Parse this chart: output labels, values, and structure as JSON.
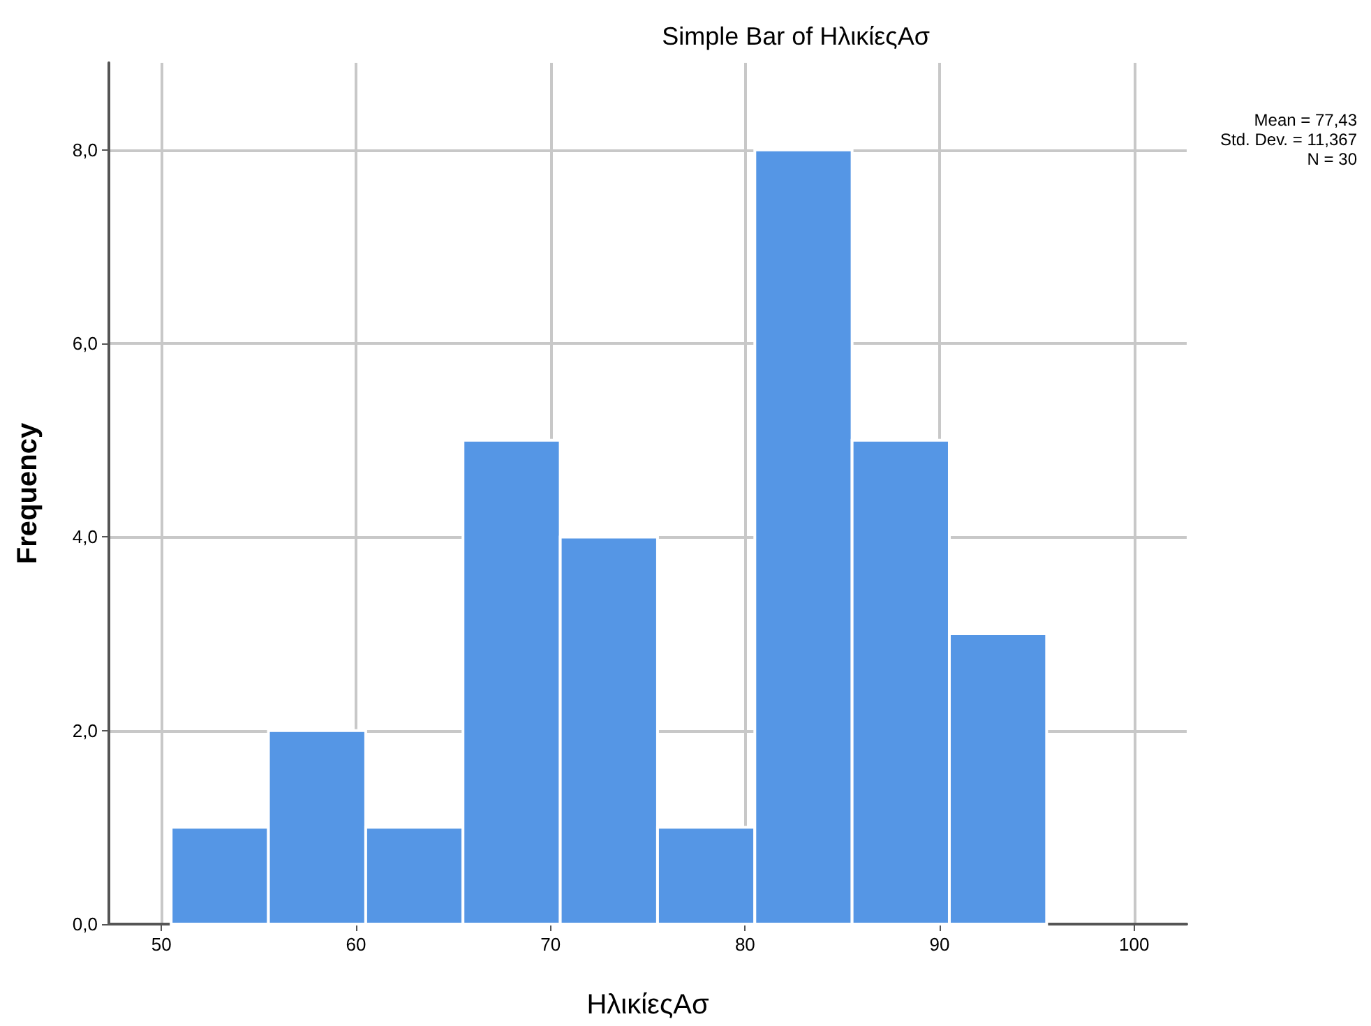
{
  "chart_data": {
    "type": "histogram",
    "title": "Simple Bar of ΗλικίεςΑσ",
    "xlabel": "ΗλικίεςΑσ",
    "ylabel": "Frequency",
    "bins": [
      50.5,
      55.5,
      60.5,
      65.5,
      70.5,
      75.5,
      80.5,
      85.5,
      90.5,
      95.5
    ],
    "values": [
      1,
      2,
      1,
      5,
      4,
      1,
      8,
      5,
      3
    ],
    "color": "#5596e5",
    "xlim": [
      47.3,
      102.7
    ],
    "xticks": [
      50,
      60,
      70,
      80,
      90,
      100
    ],
    "ylim": [
      0,
      8.9
    ],
    "yticks": [
      {
        "value": 0,
        "label": "0,0"
      },
      {
        "value": 2,
        "label": "2,0"
      },
      {
        "value": 4,
        "label": "4,0"
      },
      {
        "value": 6,
        "label": "6,0"
      },
      {
        "value": 8,
        "label": "8,0"
      }
    ],
    "grid": true,
    "annotations": [
      "Mean = 77,43",
      "Std. Dev. = 11,367",
      "N = 30"
    ]
  }
}
